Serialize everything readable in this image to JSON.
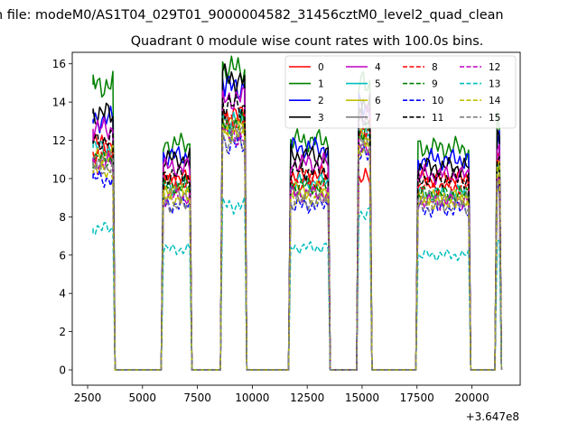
{
  "chart_data": {
    "type": "line",
    "suptitle": "n file: modeM0/AS1T04_029T01_9000004582_31456cztM0_level2_quad_clean",
    "title": "Quadrant 0 module wise count rates with 100.0s bins.",
    "xlabel": "",
    "ylabel": "",
    "x_offset_label": "+3.647e8",
    "xlim": [
      1800,
      22200
    ],
    "ylim": [
      -0.8,
      16.6
    ],
    "xticks": [
      2500,
      5000,
      7500,
      10000,
      12500,
      15000,
      17500,
      20000
    ],
    "xtick_labels": [
      "2500",
      "5000",
      "7500",
      "10000",
      "12500",
      "15000",
      "17500",
      "20000"
    ],
    "yticks": [
      0,
      2,
      4,
      6,
      8,
      10,
      12,
      14,
      16
    ],
    "ytick_labels": [
      "0",
      "2",
      "4",
      "6",
      "8",
      "10",
      "12",
      "14",
      "16"
    ],
    "grid": false,
    "legend_position": "top-right",
    "legend_columns": 4,
    "segments": [
      {
        "start": 2750,
        "end": 3650
      },
      {
        "start": 5950,
        "end": 7150
      },
      {
        "start": 8650,
        "end": 9650
      },
      {
        "start": 11750,
        "end": 13450
      },
      {
        "start": 14850,
        "end": 15350
      },
      {
        "start": 17550,
        "end": 19850
      },
      {
        "start": 21150,
        "end": 21250
      }
    ],
    "gaps": [
      {
        "start": 3750,
        "end": 5850
      },
      {
        "start": 7250,
        "end": 8550
      },
      {
        "start": 9750,
        "end": 11650
      },
      {
        "start": 13550,
        "end": 14750
      },
      {
        "start": 15450,
        "end": 17450
      },
      {
        "start": 19950,
        "end": 21050
      }
    ],
    "series": [
      {
        "name": "0",
        "color": "#ff0000",
        "dash": "solid",
        "levels": [
          11.8,
          10.0,
          13.3,
          10.2,
          10.0,
          10.0,
          11.0
        ]
      },
      {
        "name": "1",
        "color": "#008000",
        "dash": "solid",
        "levels": [
          14.9,
          11.8,
          15.7,
          12.0,
          14.9,
          11.6,
          13.3
        ]
      },
      {
        "name": "2",
        "color": "#0000ff",
        "dash": "solid",
        "levels": [
          13.1,
          11.2,
          14.8,
          11.6,
          13.8,
          11.0,
          12.4
        ]
      },
      {
        "name": "3",
        "color": "#000000",
        "dash": "solid",
        "levels": [
          13.4,
          11.0,
          15.2,
          11.2,
          14.0,
          10.6,
          12.2
        ]
      },
      {
        "name": "4",
        "color": "#bf00bf",
        "dash": "solid",
        "levels": [
          12.6,
          10.6,
          14.2,
          10.8,
          13.2,
          10.2,
          11.6
        ]
      },
      {
        "name": "5",
        "color": "#00bfbf",
        "dash": "solid",
        "levels": [
          11.6,
          9.6,
          13.0,
          9.8,
          12.4,
          9.2,
          10.4
        ]
      },
      {
        "name": "6",
        "color": "#bfbf00",
        "dash": "solid",
        "levels": [
          11.2,
          9.4,
          12.8,
          9.4,
          12.0,
          9.0,
          10.2
        ]
      },
      {
        "name": "7",
        "color": "#808080",
        "dash": "solid",
        "levels": [
          11.0,
          9.2,
          12.6,
          9.2,
          12.2,
          9.0,
          10.0
        ]
      },
      {
        "name": "8",
        "color": "#ff0000",
        "dash": "dashed",
        "levels": [
          11.4,
          9.8,
          13.0,
          9.8,
          12.6,
          9.6,
          10.8
        ]
      },
      {
        "name": "9",
        "color": "#008000",
        "dash": "dashed",
        "levels": [
          11.0,
          9.6,
          12.8,
          9.6,
          12.4,
          9.2,
          10.4
        ]
      },
      {
        "name": "10",
        "color": "#0000ff",
        "dash": "dashed",
        "levels": [
          10.0,
          8.6,
          11.8,
          8.6,
          11.2,
          8.4,
          9.4
        ]
      },
      {
        "name": "11",
        "color": "#000000",
        "dash": "dashed",
        "levels": [
          12.0,
          10.2,
          13.8,
          10.4,
          13.0,
          10.0,
          11.4
        ]
      },
      {
        "name": "12",
        "color": "#bf00bf",
        "dash": "dashed",
        "levels": [
          10.8,
          9.0,
          12.2,
          9.2,
          11.8,
          8.8,
          10.0
        ]
      },
      {
        "name": "13",
        "color": "#00bfbf",
        "dash": "dashed",
        "levels": [
          7.4,
          6.3,
          8.6,
          6.4,
          8.2,
          6.0,
          6.8
        ]
      },
      {
        "name": "14",
        "color": "#bfbf00",
        "dash": "dashed",
        "levels": [
          10.4,
          9.0,
          12.4,
          9.0,
          11.6,
          8.8,
          10.4
        ]
      },
      {
        "name": "15",
        "color": "#808080",
        "dash": "dashed",
        "levels": [
          10.6,
          8.6,
          12.0,
          8.8,
          11.4,
          8.6,
          9.6
        ]
      }
    ]
  }
}
